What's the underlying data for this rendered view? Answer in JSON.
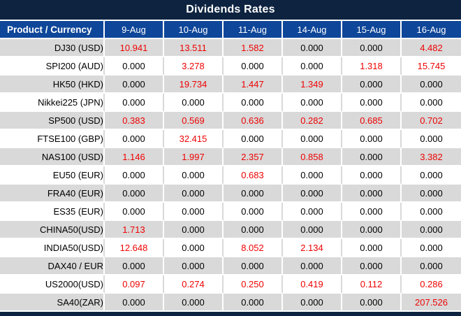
{
  "title": "Dividends Rates",
  "columns": [
    "Product / Currency",
    "9-Aug",
    "10-Aug",
    "11-Aug",
    "14-Aug",
    "15-Aug",
    "16-Aug"
  ],
  "rows": [
    {
      "product": "DJ30 (USD)",
      "values": [
        "10.941",
        "13.511",
        "1.582",
        "0.000",
        "0.000",
        "4.482"
      ]
    },
    {
      "product": "SPI200 (AUD)",
      "values": [
        "0.000",
        "3.278",
        "0.000",
        "0.000",
        "1.318",
        "15.745"
      ]
    },
    {
      "product": "HK50 (HKD)",
      "values": [
        "0.000",
        "19.734",
        "1.447",
        "1.349",
        "0.000",
        "0.000"
      ]
    },
    {
      "product": "Nikkei225 (JPN)",
      "values": [
        "0.000",
        "0.000",
        "0.000",
        "0.000",
        "0.000",
        "0.000"
      ]
    },
    {
      "product": "SP500 (USD)",
      "values": [
        "0.383",
        "0.569",
        "0.636",
        "0.282",
        "0.685",
        "0.702"
      ]
    },
    {
      "product": "FTSE100 (GBP)",
      "values": [
        "0.000",
        "32.415",
        "0.000",
        "0.000",
        "0.000",
        "0.000"
      ]
    },
    {
      "product": "NAS100 (USD)",
      "values": [
        "1.146",
        "1.997",
        "2.357",
        "0.858",
        "0.000",
        "3.382"
      ]
    },
    {
      "product": "EU50 (EUR)",
      "values": [
        "0.000",
        "0.000",
        "0.683",
        "0.000",
        "0.000",
        "0.000"
      ]
    },
    {
      "product": "FRA40 (EUR)",
      "values": [
        "0.000",
        "0.000",
        "0.000",
        "0.000",
        "0.000",
        "0.000"
      ]
    },
    {
      "product": "ES35 (EUR)",
      "values": [
        "0.000",
        "0.000",
        "0.000",
        "0.000",
        "0.000",
        "0.000"
      ]
    },
    {
      "product": "CHINA50(USD)",
      "values": [
        "1.713",
        "0.000",
        "0.000",
        "0.000",
        "0.000",
        "0.000"
      ]
    },
    {
      "product": "INDIA50(USD)",
      "values": [
        "12.648",
        "0.000",
        "8.052",
        "2.134",
        "0.000",
        "0.000"
      ]
    },
    {
      "product": "DAX40 / EUR",
      "values": [
        "0.000",
        "0.000",
        "0.000",
        "0.000",
        "0.000",
        "0.000"
      ]
    },
    {
      "product": "US2000(USD)",
      "values": [
        "0.097",
        "0.274",
        "0.250",
        "0.419",
        "0.112",
        "0.286"
      ]
    },
    {
      "product": "SA40(ZAR)",
      "values": [
        "0.000",
        "0.000",
        "0.000",
        "0.000",
        "0.000",
        "207.526"
      ]
    }
  ],
  "colors": {
    "title_bar_navy": "#0d2340",
    "header_blue": "#0e4699",
    "band_gray": "#d9d9d9",
    "value_red": "#ee0202",
    "value_black": "#000000"
  }
}
